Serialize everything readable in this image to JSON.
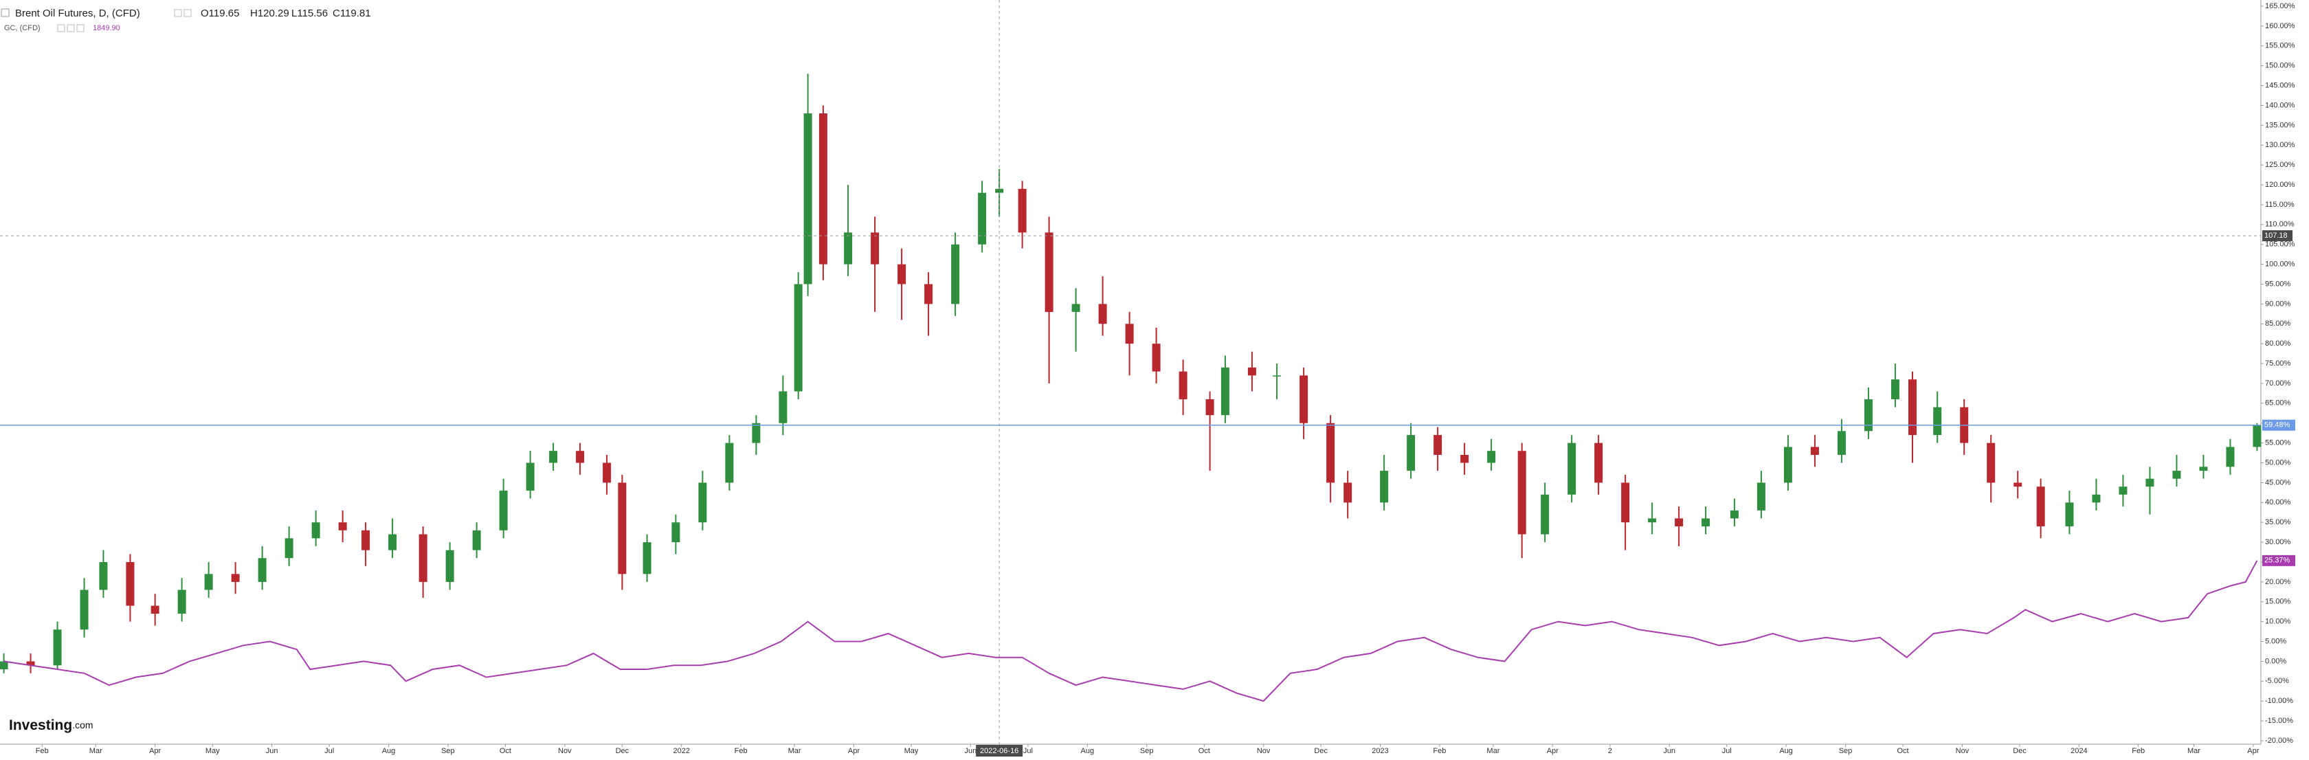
{
  "chart_data": {
    "type": "candlestick",
    "title": "Brent Oil Futures, D, (CFD)",
    "ohlc_readout": [
      "O119.65",
      "H120.29",
      "L115.56",
      "C119.81"
    ],
    "subtitle": "GC, (CFD)",
    "subtitle_value": "1849.90",
    "logo": [
      "Investing",
      ".com"
    ],
    "xlim": [
      "2021-01-10",
      "2024-04-05"
    ],
    "xticks": [
      {
        "value": "2021-02-01",
        "label": "Feb"
      },
      {
        "value": "2021-03-01",
        "label": "Mar"
      },
      {
        "value": "2021-04-01",
        "label": "Apr"
      },
      {
        "value": "2021-05-01",
        "label": "May"
      },
      {
        "value": "2021-06-01",
        "label": "Jun"
      },
      {
        "value": "2021-07-01",
        "label": "Jul"
      },
      {
        "value": "2021-08-01",
        "label": "Aug"
      },
      {
        "value": "2021-09-01",
        "label": "Sep"
      },
      {
        "value": "2021-10-01",
        "label": "Oct"
      },
      {
        "value": "2021-11-01",
        "label": "Nov"
      },
      {
        "value": "2021-12-01",
        "label": "Dec"
      },
      {
        "value": "2022-01-01",
        "label": "2022"
      },
      {
        "value": "2022-02-01",
        "label": "Feb"
      },
      {
        "value": "2022-03-01",
        "label": "Mar"
      },
      {
        "value": "2022-04-01",
        "label": "Apr"
      },
      {
        "value": "2022-05-01",
        "label": "May"
      },
      {
        "value": "2022-06-01",
        "label": "Jun"
      },
      {
        "value": "2022-07-01",
        "label": "Jul"
      },
      {
        "value": "2022-08-01",
        "label": "Aug"
      },
      {
        "value": "2022-09-01",
        "label": "Sep"
      },
      {
        "value": "2022-10-01",
        "label": "Oct"
      },
      {
        "value": "2022-11-01",
        "label": "Nov"
      },
      {
        "value": "2022-12-01",
        "label": "Dec"
      },
      {
        "value": "2023-01-01",
        "label": "2023"
      },
      {
        "value": "2023-02-01",
        "label": "Feb"
      },
      {
        "value": "2023-03-01",
        "label": "Mar"
      },
      {
        "value": "2023-04-01",
        "label": "Apr"
      },
      {
        "value": "2023-05-01",
        "label": "2"
      },
      {
        "value": "2023-06-01",
        "label": "Jun"
      },
      {
        "value": "2023-07-01",
        "label": "Jul"
      },
      {
        "value": "2023-08-01",
        "label": "Aug"
      },
      {
        "value": "2023-09-01",
        "label": "Sep"
      },
      {
        "value": "2023-10-01",
        "label": "Oct"
      },
      {
        "value": "2023-11-01",
        "label": "Nov"
      },
      {
        "value": "2023-12-01",
        "label": "Dec"
      },
      {
        "value": "2024-01-01",
        "label": "2024"
      },
      {
        "value": "2024-02-01",
        "label": "Feb"
      },
      {
        "value": "2024-03-01",
        "label": "Mar"
      },
      {
        "value": "2024-04-01",
        "label": "Apr"
      }
    ],
    "ylim": [
      -20,
      165
    ],
    "yticks": [
      {
        "value": 165,
        "label": "165.00%"
      },
      {
        "value": 160,
        "label": "160.00%"
      },
      {
        "value": 155,
        "label": "155.00%"
      },
      {
        "value": 150,
        "label": "150.00%"
      },
      {
        "value": 145,
        "label": "145.00%"
      },
      {
        "value": 140,
        "label": "140.00%"
      },
      {
        "value": 135,
        "label": "135.00%"
      },
      {
        "value": 130,
        "label": "130.00%"
      },
      {
        "value": 125,
        "label": "125.00%"
      },
      {
        "value": 120,
        "label": "120.00%"
      },
      {
        "value": 115,
        "label": "115.00%"
      },
      {
        "value": 110,
        "label": "110.00%"
      },
      {
        "value": 105,
        "label": "105.00%"
      },
      {
        "value": 100,
        "label": "100.00%"
      },
      {
        "value": 95,
        "label": "95.00%"
      },
      {
        "value": 90,
        "label": "90.00%"
      },
      {
        "value": 85,
        "label": "85.00%"
      },
      {
        "value": 80,
        "label": "80.00%"
      },
      {
        "value": 75,
        "label": "75.00%"
      },
      {
        "value": 70,
        "label": "70.00%"
      },
      {
        "value": 65,
        "label": "65.00%"
      },
      {
        "value": 60,
        "label": "60.00%"
      },
      {
        "value": 55,
        "label": "55.00%"
      },
      {
        "value": 50,
        "label": "50.00%"
      },
      {
        "value": 45,
        "label": "45.00%"
      },
      {
        "value": 40,
        "label": "40.00%"
      },
      {
        "value": 35,
        "label": "35.00%"
      },
      {
        "value": 30,
        "label": "30.00%"
      },
      {
        "value": 25,
        "label": "25.00%"
      },
      {
        "value": 20,
        "label": "20.00%"
      },
      {
        "value": 15,
        "label": "15.00%"
      },
      {
        "value": 10,
        "label": "10.00%"
      },
      {
        "value": 5,
        "label": "5.00%"
      },
      {
        "value": 0,
        "label": "0.00%"
      },
      {
        "value": -5,
        "label": "-5.00%"
      },
      {
        "value": -10,
        "label": "-10.00%"
      },
      {
        "value": -15,
        "label": "-15.00%"
      },
      {
        "value": -20,
        "label": "-20.00%"
      }
    ],
    "crosshair": {
      "x": "2022-06-16",
      "y": 107.18
    },
    "series": [
      {
        "name": "Brent Oil Futures",
        "type": "candlestick",
        "up_color": "#2f8f3f",
        "down_color": "#b8282e",
        "line_color": "#6b9be8",
        "last_label": "59.48%",
        "x": [
          "2021-01-12",
          "2021-01-26",
          "2021-02-09",
          "2021-02-23",
          "2021-03-05",
          "2021-03-19",
          "2021-04-01",
          "2021-04-15",
          "2021-04-29",
          "2021-05-13",
          "2021-05-27",
          "2021-06-10",
          "2021-06-24",
          "2021-07-08",
          "2021-07-20",
          "2021-08-03",
          "2021-08-19",
          "2021-09-02",
          "2021-09-16",
          "2021-09-30",
          "2021-10-14",
          "2021-10-26",
          "2021-11-09",
          "2021-11-23",
          "2021-12-01",
          "2021-12-14",
          "2021-12-29",
          "2022-01-12",
          "2022-01-26",
          "2022-02-09",
          "2022-02-23",
          "2022-03-03",
          "2022-03-08",
          "2022-03-16",
          "2022-03-29",
          "2022-04-12",
          "2022-04-26",
          "2022-05-10",
          "2022-05-24",
          "2022-06-07",
          "2022-06-16",
          "2022-06-28",
          "2022-07-12",
          "2022-07-26",
          "2022-08-09",
          "2022-08-23",
          "2022-09-06",
          "2022-09-20",
          "2022-10-04",
          "2022-10-12",
          "2022-10-26",
          "2022-11-08",
          "2022-11-22",
          "2022-12-06",
          "2022-12-15",
          "2023-01-03",
          "2023-01-17",
          "2023-01-31",
          "2023-02-14",
          "2023-02-28",
          "2023-03-16",
          "2023-03-28",
          "2023-04-11",
          "2023-04-25",
          "2023-05-09",
          "2023-05-23",
          "2023-06-06",
          "2023-06-20",
          "2023-07-05",
          "2023-07-19",
          "2023-08-02",
          "2023-08-16",
          "2023-08-30",
          "2023-09-13",
          "2023-09-27",
          "2023-10-06",
          "2023-10-19",
          "2023-11-02",
          "2023-11-16",
          "2023-11-30",
          "2023-12-12",
          "2023-12-27",
          "2024-01-10",
          "2024-01-24",
          "2024-02-07",
          "2024-02-21",
          "2024-03-06",
          "2024-03-20",
          "2024-04-03"
        ],
        "open": [
          -2,
          0,
          -1,
          8,
          18,
          25,
          14,
          12,
          18,
          22,
          20,
          26,
          31,
          35,
          33,
          28,
          32,
          20,
          28,
          33,
          43,
          50,
          53,
          50,
          45,
          22,
          30,
          35,
          45,
          55,
          60,
          68,
          95,
          138,
          100,
          108,
          100,
          95,
          90,
          105,
          118,
          119,
          108,
          88,
          90,
          85,
          80,
          73,
          66,
          62,
          74,
          72,
          72,
          60,
          45,
          40,
          48,
          57,
          52,
          50,
          53,
          32,
          42,
          55,
          45,
          35,
          36,
          34,
          36,
          38,
          45,
          54,
          52,
          58,
          66,
          71,
          57,
          64,
          55,
          45,
          44,
          34,
          40,
          42,
          44,
          46,
          48,
          49,
          54
        ],
        "high": [
          2,
          2,
          10,
          21,
          28,
          27,
          17,
          21,
          25,
          25,
          29,
          34,
          38,
          38,
          35,
          36,
          34,
          30,
          35,
          46,
          53,
          55,
          55,
          52,
          47,
          32,
          37,
          48,
          57,
          62,
          72,
          98,
          148,
          140,
          120,
          112,
          104,
          98,
          108,
          121,
          124,
          121,
          112,
          94,
          97,
          88,
          84,
          76,
          68,
          77,
          78,
          75,
          74,
          62,
          48,
          52,
          60,
          59,
          55,
          56,
          55,
          45,
          57,
          57,
          47,
          40,
          39,
          39,
          41,
          48,
          57,
          57,
          61,
          69,
          75,
          73,
          68,
          66,
          57,
          48,
          46,
          43,
          46,
          47,
          49,
          52,
          52,
          56,
          60
        ],
        "low": [
          -3,
          -3,
          -2,
          6,
          16,
          10,
          9,
          10,
          16,
          17,
          18,
          24,
          29,
          30,
          24,
          26,
          16,
          18,
          26,
          31,
          41,
          48,
          47,
          42,
          18,
          20,
          27,
          33,
          43,
          52,
          57,
          66,
          92,
          96,
          97,
          88,
          86,
          82,
          87,
          103,
          112,
          104,
          70,
          78,
          82,
          72,
          70,
          62,
          48,
          60,
          68,
          66,
          56,
          40,
          36,
          38,
          46,
          48,
          47,
          48,
          26,
          30,
          40,
          42,
          28,
          32,
          29,
          32,
          34,
          36,
          43,
          49,
          50,
          56,
          64,
          50,
          55,
          52,
          40,
          41,
          31,
          32,
          38,
          39,
          37,
          44,
          46,
          47,
          53
        ],
        "close": [
          0,
          -1,
          8,
          18,
          25,
          14,
          12,
          18,
          22,
          20,
          26,
          31,
          35,
          33,
          28,
          32,
          20,
          28,
          33,
          43,
          50,
          53,
          50,
          45,
          22,
          30,
          35,
          45,
          55,
          60,
          68,
          95,
          138,
          100,
          108,
          100,
          95,
          90,
          105,
          118,
          119,
          108,
          88,
          90,
          85,
          80,
          73,
          66,
          62,
          74,
          72,
          72,
          60,
          45,
          40,
          48,
          57,
          52,
          50,
          53,
          32,
          42,
          55,
          45,
          35,
          36,
          34,
          36,
          38,
          45,
          54,
          52,
          58,
          66,
          71,
          57,
          64,
          55,
          45,
          44,
          34,
          40,
          42,
          44,
          46,
          48,
          49,
          54,
          59.48
        ]
      },
      {
        "name": "GC",
        "type": "line",
        "color": "#a83cae",
        "last_label": "25.37%",
        "x": [
          "2021-01-12",
          "2021-01-26",
          "2021-02-09",
          "2021-02-23",
          "2021-03-08",
          "2021-03-22",
          "2021-04-05",
          "2021-04-19",
          "2021-05-03",
          "2021-05-17",
          "2021-05-31",
          "2021-06-14",
          "2021-06-21",
          "2021-07-05",
          "2021-07-19",
          "2021-08-02",
          "2021-08-10",
          "2021-08-24",
          "2021-09-07",
          "2021-09-21",
          "2021-10-05",
          "2021-10-19",
          "2021-11-02",
          "2021-11-16",
          "2021-11-30",
          "2021-12-14",
          "2021-12-28",
          "2022-01-11",
          "2022-01-25",
          "2022-02-08",
          "2022-02-22",
          "2022-03-08",
          "2022-03-22",
          "2022-04-05",
          "2022-04-19",
          "2022-05-03",
          "2022-05-17",
          "2022-05-31",
          "2022-06-14",
          "2022-06-28",
          "2022-07-12",
          "2022-07-26",
          "2022-08-09",
          "2022-08-23",
          "2022-09-06",
          "2022-09-20",
          "2022-10-04",
          "2022-10-18",
          "2022-11-01",
          "2022-11-15",
          "2022-11-29",
          "2022-12-13",
          "2022-12-27",
          "2023-01-10",
          "2023-01-24",
          "2023-02-07",
          "2023-02-21",
          "2023-03-07",
          "2023-03-21",
          "2023-04-04",
          "2023-04-18",
          "2023-05-02",
          "2023-05-16",
          "2023-05-30",
          "2023-06-13",
          "2023-06-27",
          "2023-07-11",
          "2023-07-25",
          "2023-08-08",
          "2023-08-22",
          "2023-09-05",
          "2023-09-19",
          "2023-10-03",
          "2023-10-17",
          "2023-10-31",
          "2023-11-14",
          "2023-11-28",
          "2023-12-04",
          "2023-12-18",
          "2024-01-02",
          "2024-01-16",
          "2024-01-30",
          "2024-02-13",
          "2024-02-27",
          "2024-03-08",
          "2024-03-20",
          "2024-03-28",
          "2024-04-03"
        ],
        "values": [
          0,
          -1,
          -2,
          -3,
          -6,
          -4,
          -3,
          0,
          2,
          4,
          5,
          3,
          -2,
          -1,
          0,
          -1,
          -5,
          -2,
          -1,
          -4,
          -3,
          -2,
          -1,
          2,
          -2,
          -2,
          -1,
          -1,
          0,
          2,
          5,
          10,
          5,
          5,
          7,
          4,
          1,
          2,
          1,
          1,
          -3,
          -6,
          -4,
          -5,
          -6,
          -7,
          -5,
          -8,
          -10,
          -3,
          -2,
          1,
          2,
          5,
          6,
          3,
          1,
          0,
          8,
          10,
          9,
          10,
          8,
          7,
          6,
          4,
          5,
          7,
          5,
          6,
          5,
          6,
          1,
          7,
          8,
          7,
          11,
          13,
          10,
          12,
          10,
          12,
          10,
          11,
          17,
          19,
          20,
          25.37
        ]
      }
    ]
  }
}
